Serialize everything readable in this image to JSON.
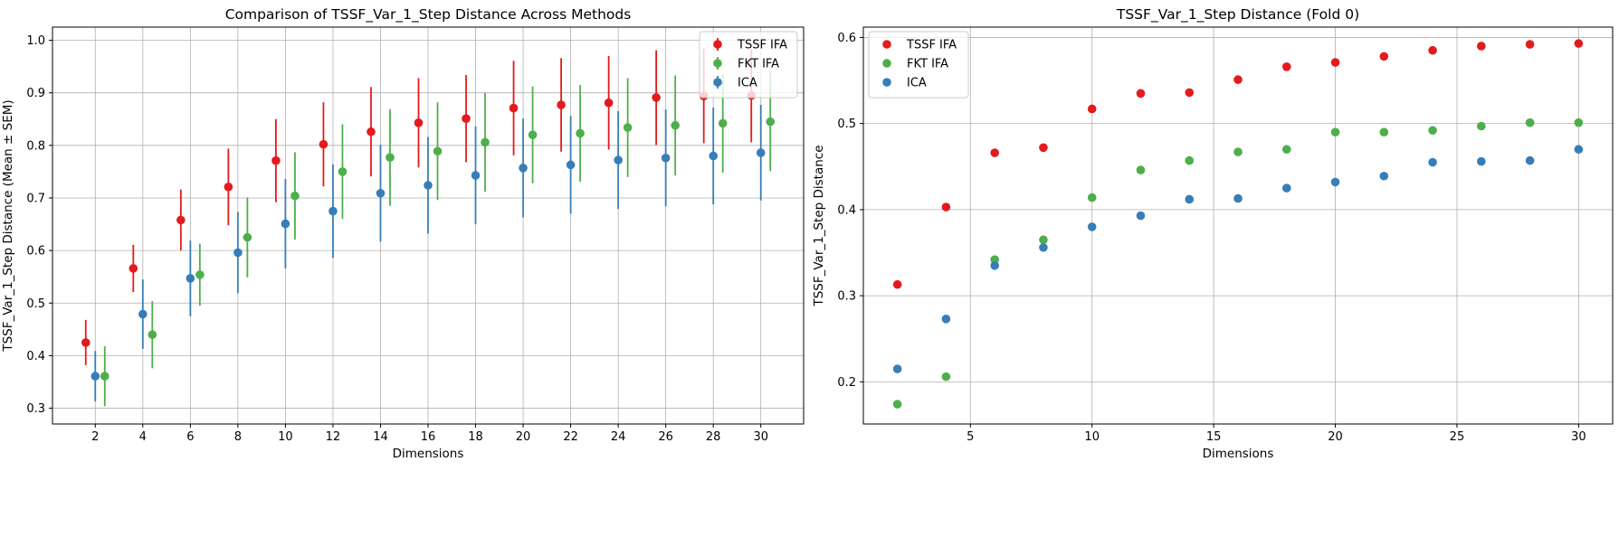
{
  "chart_data": [
    {
      "type": "scatter",
      "variant": "errorbar",
      "title": "Comparison of TSSF_Var_1_Step Distance Across Methods",
      "xlabel": "Dimensions",
      "ylabel": "TSSF_Var_1_Step Distance (Mean ± SEM)",
      "x_ticks": [
        2,
        4,
        6,
        8,
        10,
        12,
        14,
        16,
        18,
        20,
        22,
        24,
        26,
        28,
        30
      ],
      "x_tick_labels": [
        "2",
        "4",
        "6",
        "8",
        "10",
        "12",
        "14",
        "16",
        "18",
        "20",
        "22",
        "24",
        "26",
        "28",
        "30"
      ],
      "xlim": [
        0.2,
        31.8
      ],
      "ylim": [
        0.27,
        1.025
      ],
      "y_ticks": [
        0.3,
        0.4,
        0.5,
        0.6,
        0.7,
        0.8,
        0.9,
        1.0
      ],
      "y_tick_labels": [
        "0.3",
        "0.4",
        "0.5",
        "0.6",
        "0.7",
        "0.8",
        "0.9",
        "1.0"
      ],
      "grid": true,
      "legend_position": "top-right",
      "series": [
        {
          "name": "TSSF IFA",
          "color": "#e41a1c",
          "x_offset": -0.4,
          "mean": [
            0.425,
            0.566,
            0.658,
            0.721,
            0.771,
            0.802,
            0.826,
            0.843,
            0.851,
            0.871,
            0.877,
            0.881,
            0.891,
            0.894,
            0.895
          ],
          "sem": [
            0.043,
            0.045,
            0.058,
            0.073,
            0.079,
            0.08,
            0.085,
            0.085,
            0.083,
            0.09,
            0.089,
            0.089,
            0.09,
            0.09,
            0.089
          ]
        },
        {
          "name": "FKT IFA",
          "color": "#4daf4a",
          "x_offset": 0.4,
          "mean": [
            0.361,
            0.44,
            0.554,
            0.625,
            0.704,
            0.75,
            0.777,
            0.789,
            0.806,
            0.82,
            0.823,
            0.834,
            0.838,
            0.842,
            0.845
          ],
          "sem": [
            0.057,
            0.064,
            0.059,
            0.076,
            0.083,
            0.09,
            0.092,
            0.093,
            0.094,
            0.092,
            0.092,
            0.094,
            0.095,
            0.094,
            0.094
          ]
        },
        {
          "name": "ICA",
          "color": "#377eb8",
          "x_offset": 0.0,
          "mean": [
            0.361,
            0.479,
            0.547,
            0.596,
            0.651,
            0.675,
            0.709,
            0.724,
            0.743,
            0.757,
            0.763,
            0.772,
            0.776,
            0.78,
            0.786
          ],
          "sem": [
            0.048,
            0.066,
            0.072,
            0.077,
            0.085,
            0.089,
            0.092,
            0.092,
            0.093,
            0.094,
            0.093,
            0.093,
            0.092,
            0.092,
            0.091
          ]
        }
      ]
    },
    {
      "type": "scatter",
      "title": "TSSF_Var_1_Step Distance (Fold 0)",
      "xlabel": "Dimensions",
      "ylabel": "TSSF_Var_1_Step Distance",
      "x_ticks": [
        5,
        10,
        15,
        20,
        25,
        30
      ],
      "x_tick_labels": [
        "5",
        "10",
        "15",
        "20",
        "25",
        "30"
      ],
      "xlim": [
        0.6,
        31.4
      ],
      "ylim": [
        0.151,
        0.612
      ],
      "y_ticks": [
        0.2,
        0.3,
        0.4,
        0.5,
        0.6
      ],
      "y_tick_labels": [
        "0.2",
        "0.3",
        "0.4",
        "0.5",
        "0.6"
      ],
      "grid": true,
      "legend_position": "top-left",
      "x": [
        2,
        4,
        6,
        8,
        10,
        12,
        14,
        16,
        18,
        20,
        22,
        24,
        26,
        28,
        30
      ],
      "series": [
        {
          "name": "TSSF IFA",
          "color": "#e41a1c",
          "values": [
            0.313,
            0.403,
            0.466,
            0.472,
            0.517,
            0.535,
            0.536,
            0.551,
            0.566,
            0.571,
            0.578,
            0.585,
            0.59,
            0.592,
            0.593
          ]
        },
        {
          "name": "FKT IFA",
          "color": "#4daf4a",
          "values": [
            0.174,
            0.206,
            0.342,
            0.365,
            0.414,
            0.446,
            0.457,
            0.467,
            0.47,
            0.49,
            0.49,
            0.492,
            0.497,
            0.501,
            0.501
          ]
        },
        {
          "name": "ICA",
          "color": "#377eb8",
          "values": [
            0.215,
            0.273,
            0.335,
            0.356,
            0.38,
            0.393,
            0.412,
            0.413,
            0.425,
            0.432,
            0.439,
            0.455,
            0.456,
            0.457,
            0.47
          ]
        }
      ]
    }
  ]
}
